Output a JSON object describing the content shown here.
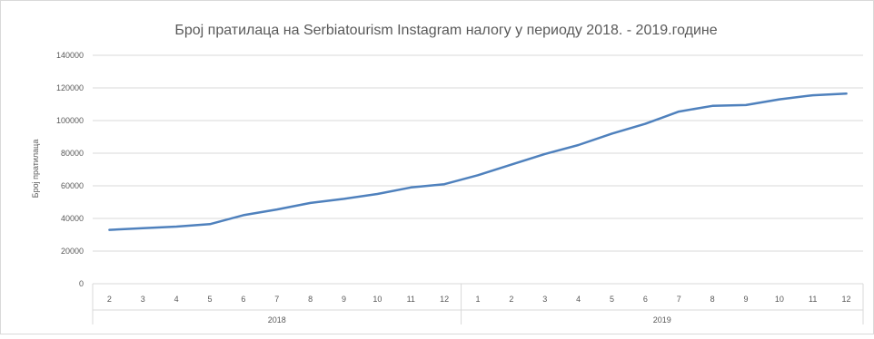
{
  "chart_data": {
    "type": "line",
    "title": "Број пратилаца на Serbiatourism Instagram налогу у периоду 2018. - 2019.године",
    "xlabel": "",
    "ylabel": "Број пратилаца",
    "ylim": [
      0,
      140000
    ],
    "yticks": [
      0,
      20000,
      40000,
      60000,
      80000,
      100000,
      120000,
      140000
    ],
    "grid": true,
    "legend": "none",
    "line_color": "#4f81bd",
    "groups": [
      {
        "label": "2018",
        "categories": [
          "2",
          "3",
          "4",
          "5",
          "6",
          "7",
          "8",
          "9",
          "10",
          "11",
          "12"
        ]
      },
      {
        "label": "2019",
        "categories": [
          "1",
          "2",
          "3",
          "4",
          "5",
          "6",
          "7",
          "8",
          "9",
          "10",
          "11",
          "12"
        ]
      }
    ],
    "values": [
      33000,
      34000,
      35000,
      36500,
      42000,
      45500,
      49500,
      52000,
      55000,
      59000,
      61000,
      66500,
      73000,
      79500,
      85000,
      92000,
      98000,
      105500,
      109000,
      109500,
      113000,
      115500,
      116500
    ]
  }
}
